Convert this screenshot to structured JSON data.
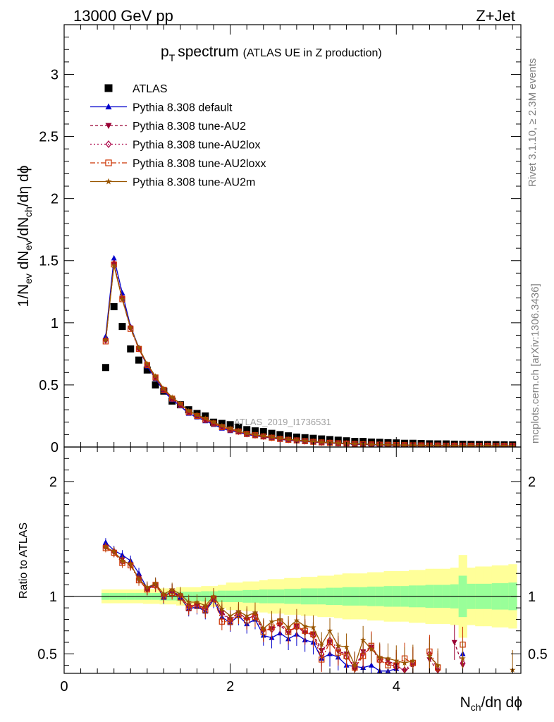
{
  "header": {
    "left": "13000 GeV pp",
    "right": "Z+Jet"
  },
  "main_title": {
    "main": "p",
    "sub": "T",
    "rest": "spectrum",
    "extra": "(ATLAS UE in Z production)"
  },
  "side_labels": {
    "rivet": "Rivet 3.1.10, ≥ 2.3M events",
    "mcplots": "mcplots.cern.ch [arXiv:1306.3436]"
  },
  "watermark": "ATLAS_2019_I1736531",
  "axes": {
    "y_main": {
      "p1": "1/N",
      "s1": "ev",
      "p2": " dN",
      "s2": "ev",
      "p3": "/dN",
      "s3": "ch",
      "p4": "/dη dϕ"
    },
    "y_ratio": "Ratio to ATLAS",
    "x": {
      "p1": "N",
      "s1": "ch",
      "p2": "/dη dϕ"
    }
  },
  "legend": [
    {
      "label": "ATLAS",
      "color": "#000000",
      "marker": "square-filled",
      "dash": ""
    },
    {
      "label": "Pythia 8.308 default",
      "color": "#0000cc",
      "marker": "triangle-up",
      "dash": ""
    },
    {
      "label": "Pythia 8.308 tune-AU2",
      "color": "#990033",
      "marker": "triangle-down",
      "dash": "4,3"
    },
    {
      "label": "Pythia 8.308 tune-AU2lox",
      "color": "#aa0044",
      "marker": "diamond-open",
      "dash": "2,3"
    },
    {
      "label": "Pythia 8.308 tune-AU2loxx",
      "color": "#cc3300",
      "marker": "square-open",
      "dash": "7,3,2,3"
    },
    {
      "label": "Pythia 8.308 tune-AU2m",
      "color": "#995500",
      "marker": "star",
      "dash": ""
    }
  ],
  "colors": {
    "band_outer": "#ffff99",
    "band_inner": "#99ff99"
  },
  "chart_data": {
    "type": "scatter",
    "x_range": [
      0,
      5.5
    ],
    "main": {
      "ylim": [
        0,
        3.4
      ],
      "y_ticks": [
        0,
        0.5,
        1,
        1.5,
        2,
        2.5,
        3
      ],
      "y_tick_labels": [
        "0",
        "0.5",
        "1",
        "1.5",
        "2",
        "2.5",
        "3"
      ]
    },
    "ratio": {
      "ylim": [
        0.33,
        2.3
      ],
      "y_ticks": [
        0.5,
        1,
        2
      ],
      "y_tick_labels": [
        "0.5",
        "1",
        "2"
      ]
    },
    "x_ticks": [
      0,
      2,
      4
    ],
    "x_tick_labels": [
      "0",
      "2",
      "4"
    ],
    "atlas_data": {
      "x": [
        0.5,
        0.6,
        0.7,
        0.8,
        0.9,
        1.0,
        1.1,
        1.2,
        1.3,
        1.4,
        1.5,
        1.6,
        1.7,
        1.8,
        1.9,
        2.0,
        2.1,
        2.2,
        2.3,
        2.4,
        2.5,
        2.6,
        2.7,
        2.8,
        2.9,
        3.0,
        3.1,
        3.2,
        3.3,
        3.4,
        3.5,
        3.6,
        3.7,
        3.8,
        3.9,
        4.0,
        4.1,
        4.2,
        4.3,
        4.4,
        4.5,
        4.6,
        4.7,
        4.8,
        4.9,
        5.0,
        5.1,
        5.2,
        5.3,
        5.4
      ],
      "y": [
        0.64,
        1.13,
        0.97,
        0.79,
        0.7,
        0.62,
        0.5,
        0.45,
        0.37,
        0.34,
        0.3,
        0.27,
        0.25,
        0.2,
        0.19,
        0.18,
        0.16,
        0.14,
        0.13,
        0.125,
        0.11,
        0.1,
        0.09,
        0.08,
        0.075,
        0.07,
        0.065,
        0.06,
        0.055,
        0.05,
        0.045,
        0.045,
        0.04,
        0.038,
        0.035,
        0.033,
        0.03,
        0.03,
        0.028,
        0.026,
        0.025,
        0.025,
        0.023,
        0.022,
        0.021,
        0.02,
        0.02,
        0.019,
        0.018,
        0.017
      ]
    },
    "band": {
      "x_edges": [
        0.45,
        0.55,
        0.65,
        0.75,
        0.85,
        0.95,
        1.05,
        1.15,
        1.25,
        1.35,
        1.45,
        1.55,
        1.65,
        1.75,
        1.85,
        1.95,
        2.05,
        2.15,
        2.25,
        2.35,
        2.45,
        2.55,
        2.65,
        2.75,
        2.85,
        2.95,
        3.05,
        3.15,
        3.25,
        3.35,
        3.45,
        3.55,
        3.65,
        3.75,
        3.85,
        3.95,
        4.05,
        4.15,
        4.25,
        4.35,
        4.45,
        4.55,
        4.65,
        4.75,
        4.85,
        4.95,
        5.05,
        5.15,
        5.25,
        5.35,
        5.45
      ],
      "inner_halfwidth": [
        0.03,
        0.03,
        0.03,
        0.03,
        0.03,
        0.03,
        0.03,
        0.035,
        0.035,
        0.04,
        0.04,
        0.04,
        0.045,
        0.045,
        0.05,
        0.05,
        0.05,
        0.055,
        0.055,
        0.06,
        0.06,
        0.06,
        0.065,
        0.065,
        0.07,
        0.07,
        0.07,
        0.075,
        0.075,
        0.08,
        0.08,
        0.08,
        0.085,
        0.085,
        0.09,
        0.09,
        0.09,
        0.095,
        0.095,
        0.1,
        0.1,
        0.1,
        0.105,
        0.18,
        0.11,
        0.11,
        0.11,
        0.115,
        0.115,
        0.12
      ],
      "outer_halfwidth": [
        0.06,
        0.06,
        0.06,
        0.06,
        0.06,
        0.065,
        0.065,
        0.07,
        0.07,
        0.08,
        0.08,
        0.08,
        0.09,
        0.09,
        0.1,
        0.12,
        0.12,
        0.13,
        0.13,
        0.14,
        0.15,
        0.15,
        0.16,
        0.16,
        0.17,
        0.17,
        0.18,
        0.18,
        0.19,
        0.2,
        0.2,
        0.2,
        0.21,
        0.21,
        0.22,
        0.22,
        0.22,
        0.23,
        0.23,
        0.24,
        0.24,
        0.24,
        0.25,
        0.36,
        0.25,
        0.26,
        0.26,
        0.27,
        0.27,
        0.28
      ]
    },
    "series": [
      {
        "name": "Pythia 8.308 default",
        "main": [
          0.89,
          1.52,
          1.24,
          0.97,
          0.8,
          0.65,
          0.55,
          0.45,
          0.38,
          0.33,
          0.27,
          0.24,
          0.21,
          0.18,
          0.15,
          0.13,
          0.12,
          0.1,
          0.09,
          0.082,
          0.072,
          0.062,
          0.055,
          0.05,
          0.044,
          0.04,
          0.035,
          0.032,
          0.028,
          0.026,
          0.023,
          0.021,
          0.019,
          0.017,
          0.016,
          0.015,
          0.014,
          0.013,
          0.012,
          0.011,
          0.011,
          0.01,
          0.01,
          0.01,
          0.009,
          0.009,
          0.009,
          0.008,
          0.008,
          0.008
        ],
        "ratio": [
          1.47,
          1.4,
          1.36,
          1.31,
          1.2,
          1.07,
          1.11,
          0.99,
          1.05,
          0.99,
          0.89,
          0.91,
          0.87,
          0.97,
          0.82,
          0.77,
          0.83,
          0.76,
          0.8,
          0.66,
          0.64,
          0.68,
          0.63,
          0.67,
          0.62,
          0.6,
          0.46,
          0.5,
          0.47,
          0.4,
          0.39,
          0.38,
          0.4,
          0.35,
          0.35,
          0.37,
          null,
          null,
          null,
          null,
          null,
          null,
          null,
          0.5,
          null,
          null,
          null,
          null,
          null,
          null
        ]
      },
      {
        "name": "Pythia 8.308 tune-AU2",
        "main": [
          0.86,
          1.47,
          1.2,
          0.96,
          0.79,
          0.66,
          0.56,
          0.46,
          0.39,
          0.34,
          0.28,
          0.25,
          0.22,
          0.19,
          0.16,
          0.14,
          0.125,
          0.105,
          0.095,
          0.085,
          0.075,
          0.065,
          0.058,
          0.053,
          0.047,
          0.042,
          0.037,
          0.034,
          0.03,
          0.028,
          0.025,
          0.023,
          0.021,
          0.019,
          0.018,
          0.016,
          0.015,
          0.014,
          0.013,
          0.012,
          0.012,
          0.011,
          0.011,
          0.011,
          0.01,
          0.01,
          0.01,
          0.009,
          0.009,
          0.009
        ],
        "ratio": [
          1.43,
          1.38,
          1.32,
          1.27,
          1.16,
          1.06,
          1.1,
          1.0,
          1.05,
          1.0,
          0.92,
          0.92,
          0.9,
          0.98,
          0.86,
          0.8,
          0.86,
          0.8,
          0.84,
          0.7,
          0.72,
          0.75,
          0.68,
          0.74,
          0.68,
          0.67,
          0.53,
          0.6,
          0.52,
          0.5,
          0.36,
          0.52,
          0.56,
          0.46,
          0.44,
          0.4,
          0.35,
          0.4,
          null,
          0.45,
          0.35,
          null,
          0.6,
          0.4,
          null,
          null,
          null,
          null,
          null,
          null
        ]
      },
      {
        "name": "Pythia 8.308 tune-AU2lox",
        "main": [
          0.86,
          1.48,
          1.2,
          0.96,
          0.79,
          0.66,
          0.56,
          0.46,
          0.39,
          0.34,
          0.28,
          0.25,
          0.22,
          0.19,
          0.16,
          0.14,
          0.125,
          0.105,
          0.095,
          0.085,
          0.075,
          0.065,
          0.058,
          0.053,
          0.047,
          0.042,
          0.037,
          0.034,
          0.03,
          0.028,
          0.025,
          0.023,
          0.021,
          0.019,
          0.018,
          0.016,
          0.015,
          0.014,
          0.013,
          0.012,
          0.012,
          0.011,
          0.011,
          0.011,
          0.01,
          0.01,
          0.01,
          0.009,
          0.009,
          0.009
        ],
        "ratio": [
          1.43,
          1.39,
          1.3,
          1.28,
          1.15,
          1.06,
          1.09,
          1.01,
          1.04,
          1.01,
          0.91,
          0.93,
          0.89,
          0.99,
          0.85,
          0.79,
          0.85,
          0.81,
          0.83,
          0.71,
          0.71,
          0.76,
          0.7,
          0.73,
          0.69,
          0.66,
          0.5,
          0.62,
          0.54,
          0.47,
          0.4,
          0.5,
          0.55,
          0.44,
          0.42,
          0.38,
          0.36,
          0.42,
          null,
          0.5,
          0.36,
          null,
          null,
          0.42,
          null,
          null,
          null,
          null,
          null,
          null
        ]
      },
      {
        "name": "Pythia 8.308 tune-AU2loxx",
        "main": [
          0.85,
          1.47,
          1.19,
          0.95,
          0.79,
          0.66,
          0.56,
          0.46,
          0.39,
          0.34,
          0.28,
          0.25,
          0.22,
          0.19,
          0.16,
          0.14,
          0.125,
          0.105,
          0.095,
          0.085,
          0.075,
          0.065,
          0.058,
          0.053,
          0.047,
          0.042,
          0.037,
          0.034,
          0.03,
          0.028,
          0.025,
          0.023,
          0.021,
          0.019,
          0.018,
          0.016,
          0.015,
          0.014,
          0.013,
          0.012,
          0.012,
          0.011,
          0.011,
          0.011,
          0.01,
          0.01,
          0.01,
          0.009,
          0.009,
          0.009
        ],
        "ratio": [
          1.42,
          1.38,
          1.29,
          1.27,
          1.14,
          1.06,
          1.1,
          1.0,
          1.03,
          0.99,
          0.9,
          0.92,
          0.88,
          0.98,
          0.78,
          0.78,
          0.84,
          0.79,
          0.82,
          0.69,
          0.73,
          0.78,
          0.69,
          0.74,
          0.7,
          0.67,
          0.45,
          0.6,
          0.51,
          0.48,
          0.38,
          0.48,
          0.57,
          0.45,
          0.4,
          0.4,
          0.46,
          0.42,
          null,
          0.52,
          0.38,
          null,
          null,
          0.58,
          null,
          null,
          null,
          null,
          null,
          null
        ]
      },
      {
        "name": "Pythia 8.308 tune-AU2m",
        "main": [
          0.86,
          1.46,
          1.19,
          0.96,
          0.8,
          0.67,
          0.57,
          0.47,
          0.4,
          0.35,
          0.29,
          0.26,
          0.23,
          0.2,
          0.17,
          0.15,
          0.13,
          0.11,
          0.1,
          0.09,
          0.08,
          0.07,
          0.062,
          0.056,
          0.05,
          0.045,
          0.04,
          0.036,
          0.032,
          0.03,
          0.027,
          0.025,
          0.022,
          0.02,
          0.019,
          0.017,
          0.016,
          0.015,
          0.014,
          0.013,
          0.012,
          0.012,
          0.011,
          0.011,
          0.011,
          0.01,
          0.01,
          0.01,
          0.009,
          0.009
        ],
        "ratio": [
          1.43,
          1.39,
          1.31,
          1.28,
          1.15,
          1.08,
          1.11,
          1.02,
          1.06,
          1.02,
          0.95,
          0.95,
          0.92,
          1.0,
          0.89,
          0.83,
          0.87,
          0.83,
          0.86,
          0.72,
          0.78,
          0.8,
          0.73,
          0.79,
          0.74,
          0.73,
          0.58,
          0.7,
          0.57,
          0.56,
          0.4,
          0.62,
          0.54,
          0.47,
          0.46,
          0.44,
          0.42,
          0.44,
          null,
          0.48,
          0.4,
          null,
          null,
          0.46,
          null,
          null,
          null,
          null,
          null,
          0.36
        ]
      }
    ]
  }
}
